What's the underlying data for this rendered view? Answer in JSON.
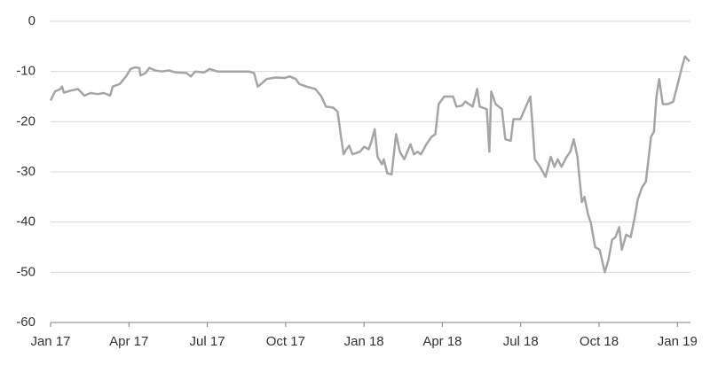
{
  "chart_data": {
    "type": "line",
    "xlim": [
      0,
      24.5
    ],
    "xticks": [
      {
        "value": 0,
        "label": "Jan 17"
      },
      {
        "value": 3,
        "label": "Apr 17"
      },
      {
        "value": 6,
        "label": "Jul 17"
      },
      {
        "value": 9,
        "label": "Oct 17"
      },
      {
        "value": 12,
        "label": "Jan 18"
      },
      {
        "value": 15,
        "label": "Apr 18"
      },
      {
        "value": 18,
        "label": "Jul 18"
      },
      {
        "value": 21,
        "label": "Oct 18"
      },
      {
        "value": 24,
        "label": "Jan 19"
      }
    ],
    "ylim": [
      -60,
      0
    ],
    "yticks": [
      0,
      -10,
      -20,
      -30,
      -40,
      -50,
      -60
    ],
    "grid": true,
    "series": [
      {
        "color": "#a5a5a5",
        "x": [
          0,
          0.17,
          0.37,
          0.44,
          0.51,
          0.78,
          1.05,
          1.29,
          1.53,
          1.8,
          2.04,
          2.28,
          2.38,
          2.65,
          2.89,
          3.06,
          3.23,
          3.4,
          3.44,
          3.64,
          3.78,
          4.01,
          4.25,
          4.52,
          4.8,
          5.2,
          5.37,
          5.54,
          5.88,
          6.09,
          6.39,
          6.73,
          7.24,
          7.59,
          7.79,
          7.93,
          8.06,
          8.27,
          8.61,
          8.95,
          9.15,
          9.39,
          9.52,
          9.8,
          10.14,
          10.37,
          10.54,
          10.82,
          10.99,
          11.12,
          11.22,
          11.33,
          11.43,
          11.56,
          11.84,
          12.01,
          12.18,
          12.28,
          12.41,
          12.52,
          12.69,
          12.76,
          12.89,
          13.06,
          13.23,
          13.37,
          13.54,
          13.78,
          13.91,
          14.05,
          14.18,
          14.39,
          14.59,
          14.73,
          14.86,
          15.07,
          15.41,
          15.54,
          15.75,
          15.88,
          16.16,
          16.33,
          16.43,
          16.7,
          16.8,
          16.87,
          17.04,
          17.28,
          17.41,
          17.62,
          17.72,
          17.99,
          18.2,
          18.37,
          18.44,
          18.54,
          18.74,
          18.95,
          19.15,
          19.29,
          19.42,
          19.56,
          19.76,
          19.9,
          20.03,
          20.17,
          20.34,
          20.44,
          20.58,
          20.68,
          20.85,
          21.02,
          21.22,
          21.36,
          21.5,
          21.63,
          21.77,
          21.87,
          22.04,
          22.21,
          22.35,
          22.48,
          22.65,
          22.79,
          22.99,
          23.1,
          23.2,
          23.3,
          23.44,
          23.64,
          23.84,
          24.01,
          24.18,
          24.29,
          24.46
        ],
        "values": [
          -15.8,
          -14,
          -13.5,
          -13,
          -14.2,
          -13.8,
          -13.5,
          -14.8,
          -14.3,
          -14.5,
          -14.3,
          -14.8,
          -13,
          -12.5,
          -11,
          -9.5,
          -9.2,
          -9.3,
          -10.8,
          -10.3,
          -9.3,
          -9.8,
          -10,
          -9.8,
          -10.2,
          -10.3,
          -11,
          -10,
          -10.2,
          -9.5,
          -10,
          -10,
          -10,
          -10,
          -10.3,
          -13,
          -12.5,
          -11.5,
          -11.2,
          -11.3,
          -11,
          -11.5,
          -12.5,
          -13,
          -13.5,
          -15,
          -17,
          -17.2,
          -18,
          -23,
          -26.5,
          -25.5,
          -24.8,
          -26.5,
          -26,
          -25,
          -25.5,
          -24,
          -21.5,
          -27,
          -28.5,
          -27.5,
          -30.3,
          -30.5,
          -22.5,
          -26,
          -27.5,
          -24.5,
          -26.5,
          -26,
          -26.5,
          -24.5,
          -23,
          -22.5,
          -16.5,
          -15,
          -15,
          -17,
          -16.8,
          -16,
          -17,
          -13.5,
          -17,
          -17.5,
          -26,
          -14,
          -16.5,
          -17.5,
          -23.5,
          -23.8,
          -19.5,
          -19.5,
          -17,
          -15,
          -20,
          -27.5,
          -29,
          -31,
          -27,
          -29,
          -27.5,
          -29,
          -27,
          -26,
          -23.5,
          -27,
          -36,
          -35,
          -38.5,
          -40,
          -45,
          -45.5,
          -50,
          -47.5,
          -43.5,
          -43,
          -41,
          -45.5,
          -42.5,
          -43,
          -39.5,
          -35.5,
          -33,
          -32,
          -23,
          -22,
          -15,
          -11.5,
          -16.5,
          -16.5,
          -16,
          -12.5,
          -9,
          -7,
          -8
        ]
      }
    ]
  }
}
